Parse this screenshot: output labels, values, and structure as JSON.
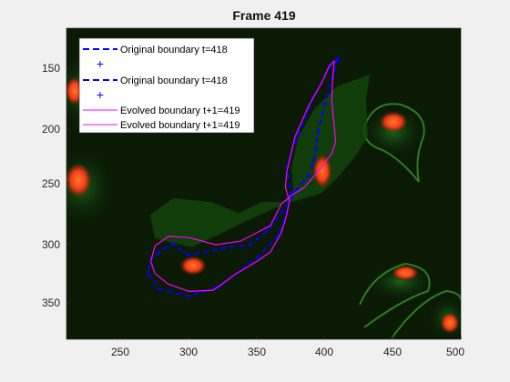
{
  "figure": {
    "title": "Frame 419",
    "x_ticks": [
      "250",
      "300",
      "350",
      "400",
      "450",
      "500"
    ],
    "y_ticks": [
      "150",
      "200",
      "250",
      "300",
      "350"
    ],
    "legend": [
      {
        "label": "Original boundary t=418",
        "kind": "dashed",
        "color": "#0000ff"
      },
      {
        "label": "",
        "kind": "plus",
        "color": "#0000ff"
      },
      {
        "label": "Original boundary t=418",
        "kind": "dashed",
        "color": "#0000ff"
      },
      {
        "label": "",
        "kind": "plus",
        "color": "#0000ff"
      },
      {
        "label": "Evolved boundary t+1=419",
        "kind": "solid",
        "color": "#ff00ff"
      },
      {
        "label": "Evolved boundary t+1=419",
        "kind": "solid",
        "color": "#ff00ff"
      }
    ]
  },
  "chart_data": {
    "type": "line",
    "title": "Frame 419",
    "xlim": [
      210,
      500
    ],
    "ylim": [
      385,
      125
    ],
    "x_ticks": [
      250,
      300,
      350,
      400,
      450,
      500
    ],
    "y_ticks": [
      150,
      200,
      250,
      300,
      350
    ],
    "y_direction": "reversed",
    "legend_position": "top-left",
    "background_image": "fluorescence-microscopy-cells",
    "colors": {
      "original": "#0000ff",
      "evolved": "#ff00ff"
    },
    "series": [
      {
        "name": "Original boundary t=418",
        "style": "dashed",
        "points": [
          [
            410,
            150
          ],
          [
            406,
            164
          ],
          [
            400,
            188
          ],
          [
            395,
            212
          ],
          [
            392,
            236
          ],
          [
            388,
            248
          ],
          [
            378,
            262
          ],
          [
            369,
            278
          ],
          [
            358,
            294
          ],
          [
            345,
            306
          ],
          [
            325,
            309
          ],
          [
            300,
            315
          ],
          [
            288,
            305
          ],
          [
            278,
            312
          ],
          [
            272,
            318
          ],
          [
            270,
            330
          ],
          [
            278,
            343
          ],
          [
            300,
            349
          ],
          [
            322,
            341
          ],
          [
            340,
            326
          ],
          [
            352,
            315
          ],
          [
            366,
            298
          ],
          [
            372,
            280
          ],
          [
            375,
            262
          ],
          [
            372,
            240
          ],
          [
            380,
            215
          ],
          [
            393,
            180
          ],
          [
            404,
            157
          ],
          [
            410,
            150
          ]
        ]
      },
      {
        "name": "Evolved boundary t+1=419",
        "style": "solid",
        "points": [
          [
            407,
            152
          ],
          [
            406,
            165
          ],
          [
            405,
            185
          ],
          [
            408,
            220
          ],
          [
            405,
            230
          ],
          [
            395,
            245
          ],
          [
            385,
            258
          ],
          [
            375,
            265
          ],
          [
            368,
            272
          ],
          [
            360,
            290
          ],
          [
            350,
            296
          ],
          [
            338,
            303
          ],
          [
            320,
            306
          ],
          [
            300,
            300
          ],
          [
            285,
            299
          ],
          [
            275,
            307
          ],
          [
            272,
            320
          ],
          [
            275,
            330
          ],
          [
            285,
            339
          ],
          [
            300,
            345
          ],
          [
            318,
            344
          ],
          [
            335,
            330
          ],
          [
            350,
            320
          ],
          [
            360,
            312
          ],
          [
            368,
            296
          ],
          [
            371,
            285
          ],
          [
            374,
            270
          ],
          [
            371,
            258
          ],
          [
            372,
            245
          ],
          [
            378,
            216
          ],
          [
            388,
            190
          ],
          [
            398,
            170
          ],
          [
            403,
            157
          ],
          [
            407,
            152
          ]
        ]
      }
    ]
  }
}
